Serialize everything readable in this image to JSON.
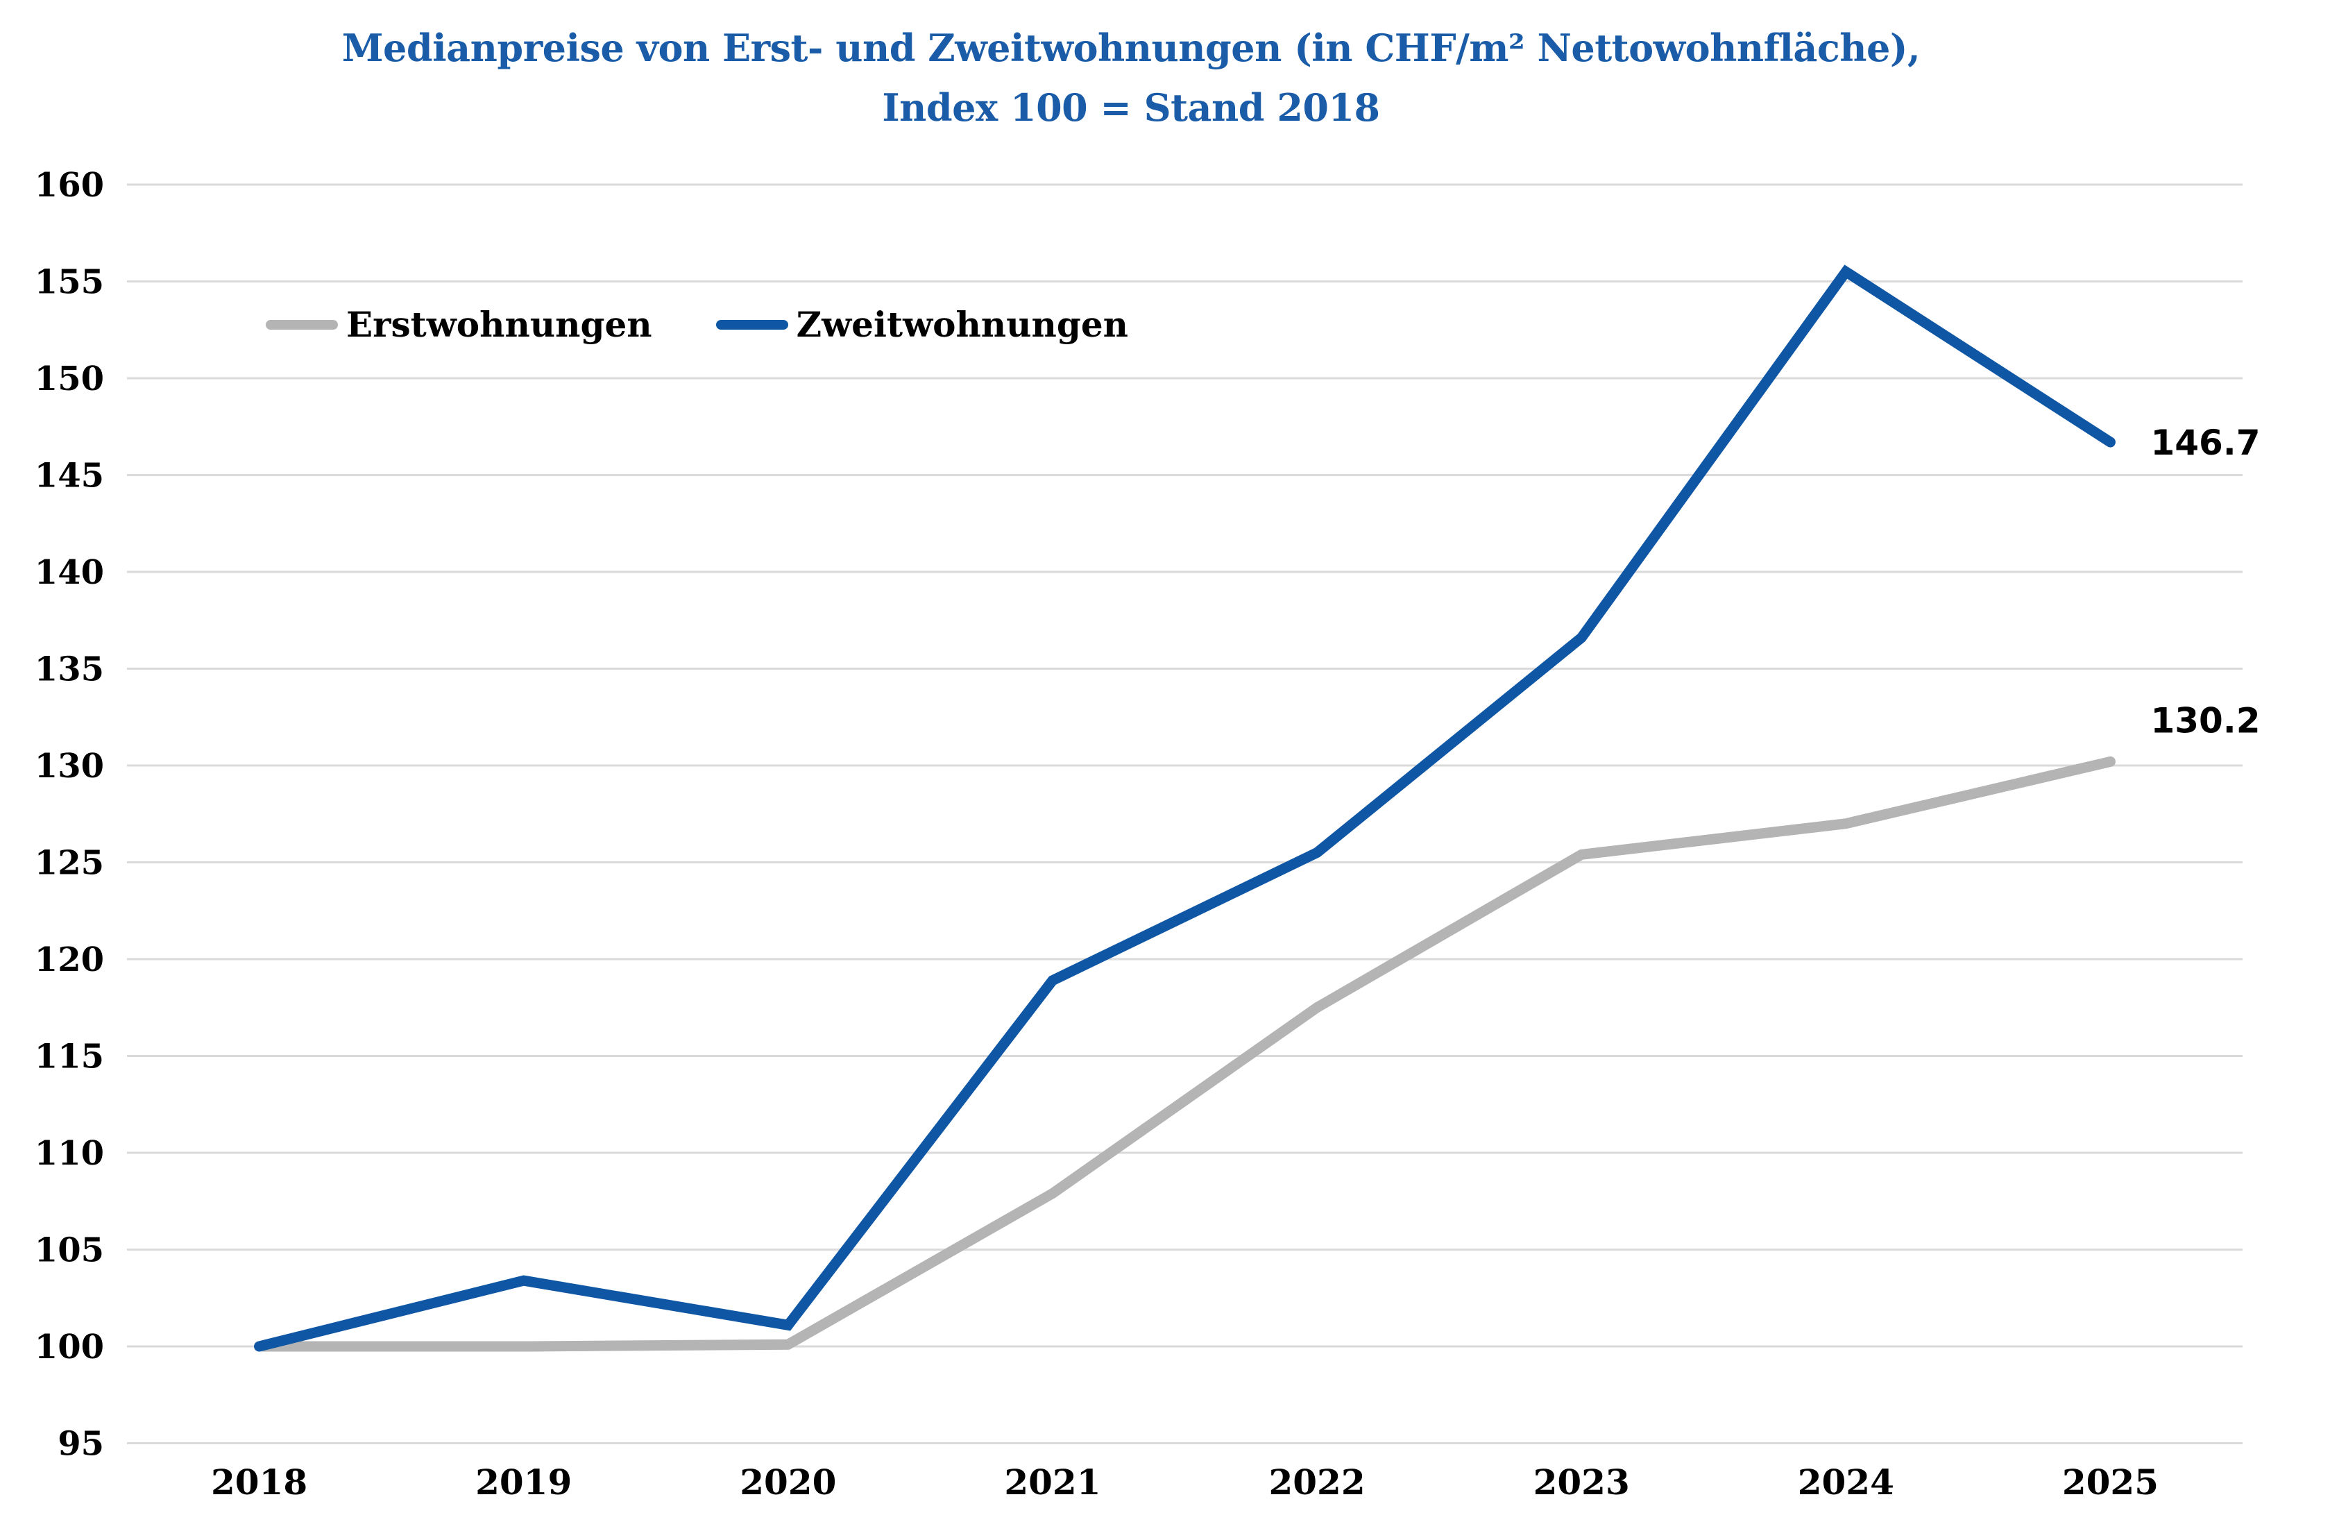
{
  "title": {
    "line1": "Medianpreise von Erst- und Zweitwohnungen (in CHF/m² Nettowohnfläche),",
    "line2": "Index 100 = Stand 2018"
  },
  "legend": {
    "items": [
      {
        "label": "Erstwohnungen",
        "color": "#B4B4B4"
      },
      {
        "label": "Zweitwohnungen",
        "color": "#0F57A5"
      }
    ]
  },
  "chart_data": {
    "type": "line",
    "categories": [
      "2018",
      "2019",
      "2020",
      "2021",
      "2022",
      "2023",
      "2024",
      "2025"
    ],
    "series": [
      {
        "name": "Erstwohnungen",
        "color": "#B4B4B4",
        "values": [
          100,
          100,
          100.1,
          107.9,
          117.5,
          125.4,
          127.0,
          130.2
        ]
      },
      {
        "name": "Zweitwohnungen",
        "color": "#0F57A5",
        "values": [
          100,
          103.4,
          101.1,
          118.9,
          125.5,
          136.6,
          155.5,
          146.7
        ]
      }
    ],
    "end_labels": [
      {
        "series": "Zweitwohnungen",
        "text": "146.7"
      },
      {
        "series": "Erstwohnungen",
        "text": "130.2"
      }
    ],
    "title": "Medianpreise von Erst- und Zweitwohnungen (in CHF/m² Nettowohnfläche), Index 100 = Stand 2018",
    "xlabel": "",
    "ylabel": "",
    "ylim": [
      95,
      160
    ],
    "ytick_step": 5,
    "grid": true,
    "legend_position": "top-left",
    "colors": {
      "grid": "#DADADA",
      "title": "#1A5CA8",
      "text": "#000000"
    }
  }
}
